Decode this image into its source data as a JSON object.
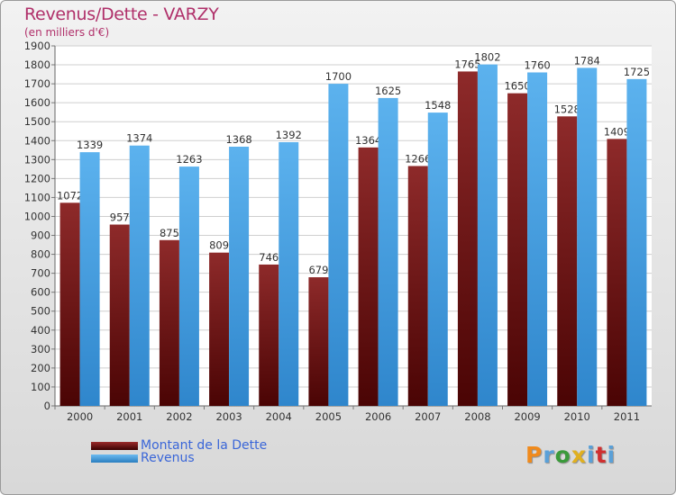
{
  "chart_data": {
    "type": "bar",
    "title": "Revenus/Dette - VARZY",
    "subtitle": "(en milliers d'€)",
    "categories": [
      "2000",
      "2001",
      "2002",
      "2003",
      "2004",
      "2005",
      "2006",
      "2007",
      "2008",
      "2009",
      "2010",
      "2011"
    ],
    "series": [
      {
        "name": "Montant de la Dette",
        "color": "#7a1515",
        "values": [
          1072,
          957,
          875,
          809,
          746,
          679,
          1364,
          1266,
          1765,
          1650,
          1528,
          1409
        ]
      },
      {
        "name": "Revenus",
        "color": "#4ea6e8",
        "values": [
          1339,
          1374,
          1263,
          1368,
          1392,
          1700,
          1625,
          1548,
          1802,
          1760,
          1784,
          1725
        ]
      }
    ],
    "ylim": [
      0,
      1900
    ],
    "ytick_step": 100,
    "grid": true
  },
  "logo_text": "Proxiti",
  "logo_colors": [
    "#f08a1c",
    "#5aa0d8",
    "#3a9a3a",
    "#e0b020",
    "#5aa0d8",
    "#d03030",
    "#5aa0d8"
  ]
}
